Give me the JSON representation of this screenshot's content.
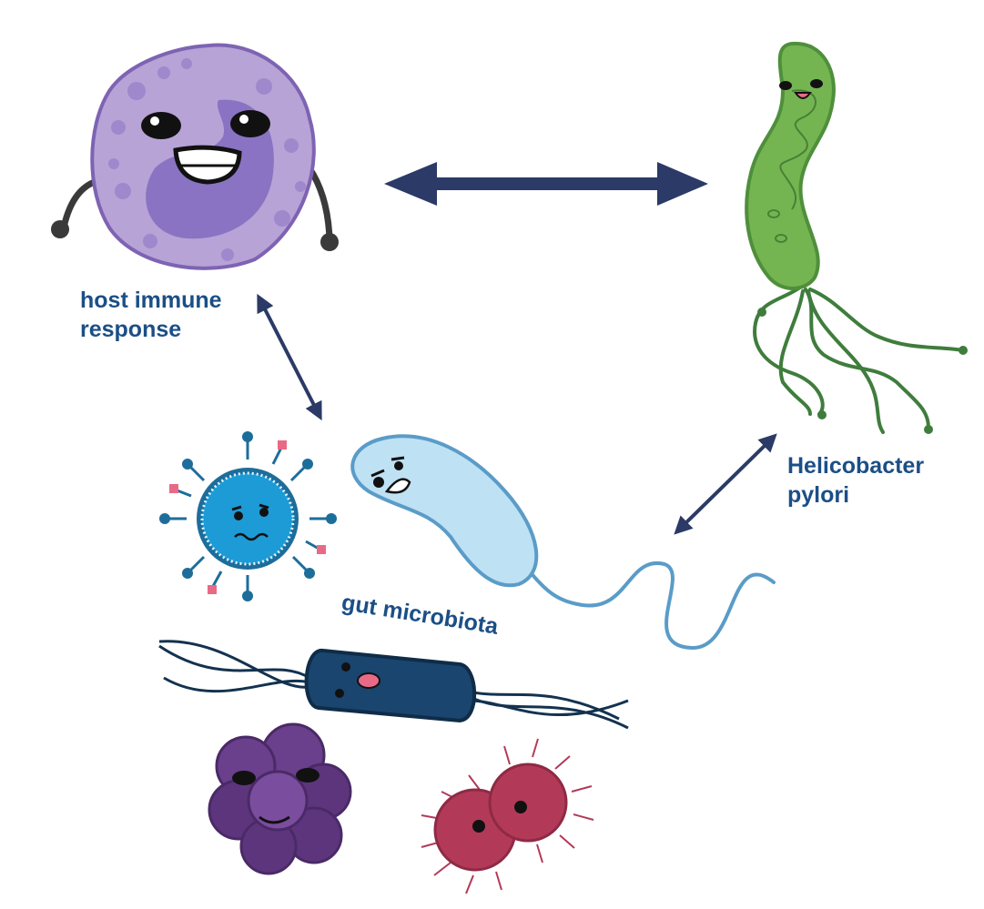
{
  "labels": {
    "host_immune_response": [
      "host immune",
      "response"
    ],
    "helicobacter_pylori": [
      "Helicobacter",
      "pylori"
    ],
    "gut_microbiota": "gut microbiota"
  },
  "colors": {
    "arrow": "#2b3a66",
    "label_text": "#1b4f86",
    "immune_cell": "#b7a3d6",
    "immune_nucleus": "#8a73c2",
    "h_pylori_body": "#74b552",
    "h_pylori_flagella": "#3f7d3c",
    "virus": "#1d9bd6",
    "virus_spike_tip": "#e86a86",
    "light_bacterium": "#bfe1f4",
    "dark_bacillus": "#1a456e",
    "purple_cluster": "#6a3f8c",
    "red_diplococcus": "#b23a58"
  },
  "icons": [
    "immune-cell-icon",
    "helicobacter-pylori-icon",
    "virus-icon",
    "light-blue-bacterium-icon",
    "dark-bacillus-icon",
    "purple-coccus-cluster-icon",
    "red-diplococcus-icon"
  ]
}
